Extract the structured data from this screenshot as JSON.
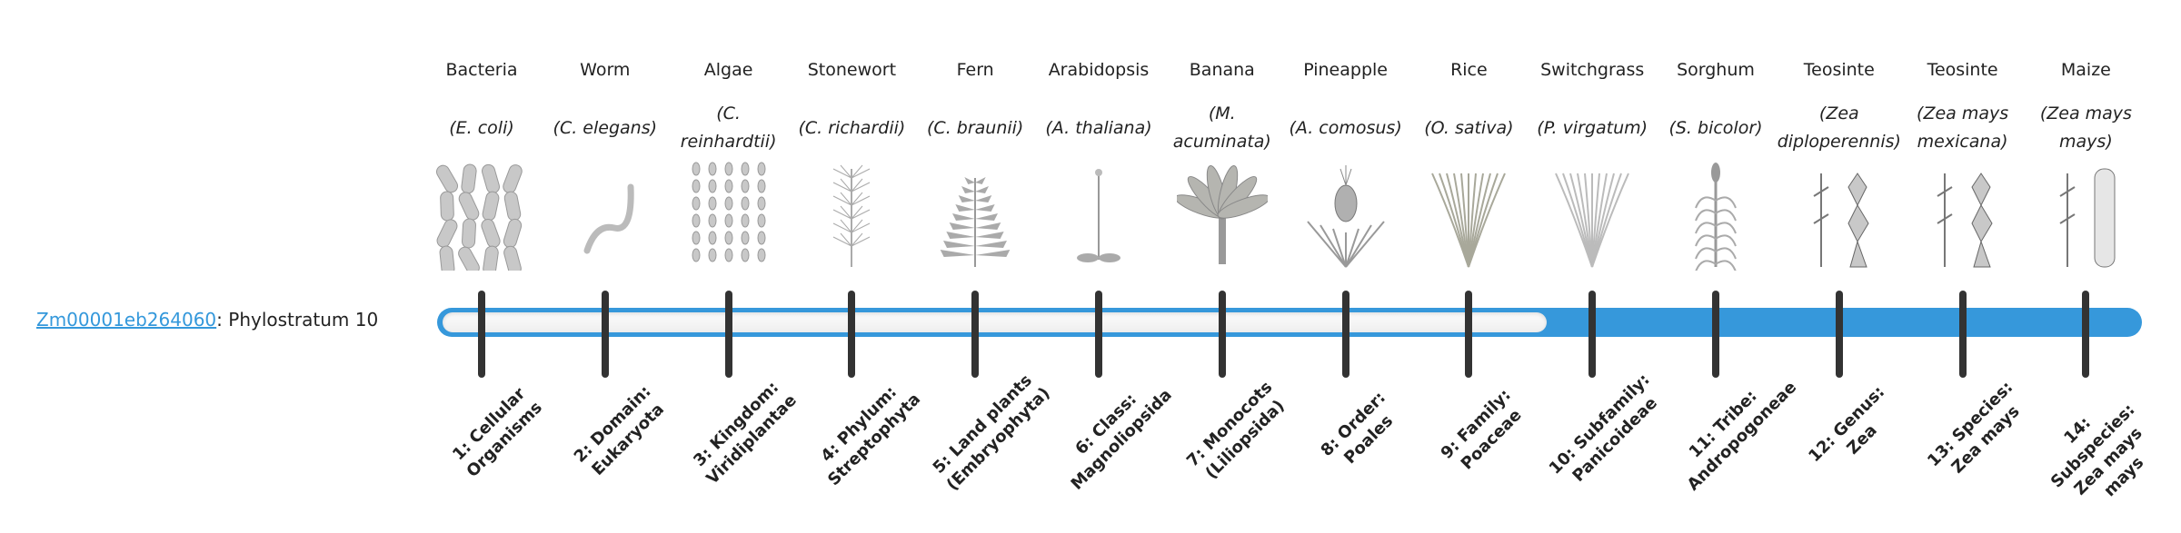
{
  "gene": {
    "id": "Zm00001eb264060",
    "suffix": ": Phylostratum 10"
  },
  "phylostratum": 10,
  "colors": {
    "accent": "#3698db",
    "tick": "#333333",
    "link": "#3498db"
  },
  "organisms": [
    {
      "common": "Bacteria",
      "sci": "(E. coli)",
      "icon": "bacteria-icon"
    },
    {
      "common": "Worm",
      "sci": "(C. elegans)",
      "icon": "worm-icon"
    },
    {
      "common": "Algae",
      "sci": "(C. reinhardtii)",
      "icon": "algae-icon"
    },
    {
      "common": "Stonewort",
      "sci": "(C. richardii)",
      "icon": "stonewort-icon"
    },
    {
      "common": "Fern",
      "sci": "(C. braunii)",
      "icon": "fern-icon"
    },
    {
      "common": "Arabidopsis",
      "sci": "(A. thaliana)",
      "icon": "arabidopsis-icon"
    },
    {
      "common": "Banana",
      "sci": "(M. acuminata)",
      "icon": "banana-icon"
    },
    {
      "common": "Pineapple",
      "sci": "(A. comosus)",
      "icon": "pineapple-icon"
    },
    {
      "common": "Rice",
      "sci": "(O. sativa)",
      "icon": "rice-icon"
    },
    {
      "common": "Switchgrass",
      "sci": "(P. virgatum)",
      "icon": "switchgrass-icon"
    },
    {
      "common": "Sorghum",
      "sci": "(S. bicolor)",
      "icon": "sorghum-icon"
    },
    {
      "common": "Teosinte",
      "sci": "(Zea diploperennis)",
      "icon": "teosinte-icon"
    },
    {
      "common": "Teosinte",
      "sci": "(Zea mays mexicana)",
      "icon": "teosinte-icon"
    },
    {
      "common": "Maize",
      "sci": "(Zea mays mays)",
      "icon": "maize-icon"
    }
  ],
  "levels": [
    "1: Cellular Organisms",
    "2: Domain: Eukaryota",
    "3: Kingdom: Viridiplantae",
    "4: Phylum: Streptophyta",
    "5: Land plants (Embryophyta)",
    "6: Class: Magnoliopsida",
    "7: Monocots (Liliopsida)",
    "8: Order: Poales",
    "9: Family: Poaceae",
    "10: Subfamily: Panicoideae",
    "11: Tribe: Andropogoneae",
    "12: Genus: Zea",
    "13: Species: Zea mays",
    "14: Subspecies: Zea mays mays"
  ]
}
